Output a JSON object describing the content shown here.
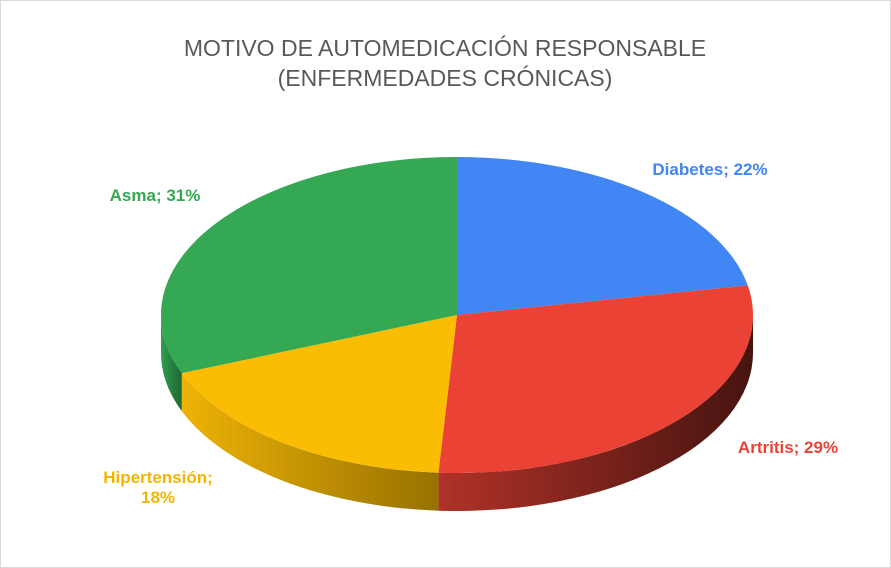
{
  "chart_data": {
    "type": "pie",
    "title": [
      "MOTIVO DE AUTOMEDICACIÓN RESPONSABLE",
      "(ENFERMEDADES CRÓNICAS)"
    ],
    "values": [
      22,
      29,
      18,
      31
    ],
    "value_labels": [
      "Diabetes; 22%",
      "Artritis; 29%",
      "Hipertensión; 18%",
      "Asma; 31%"
    ],
    "colors": [
      "#4285f4",
      "#ea4335",
      "#fbbc04",
      "#34a853"
    ],
    "label_colors": [
      "#4285f4",
      "#ea4335",
      "#f4b400",
      "#34a853"
    ]
  }
}
